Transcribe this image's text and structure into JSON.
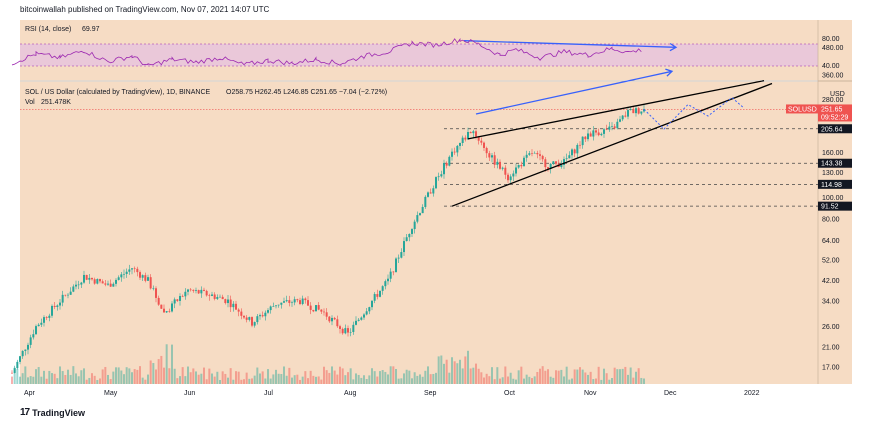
{
  "header": {
    "text": "bitcoinwallah published on TradingView.com, Nov 07, 2021 14:07 UTC"
  },
  "footer": {
    "brand": "TradingView",
    "logo": "tv-logo-icon"
  },
  "rsi_legend": {
    "label": "RSI (14, close)",
    "value": "69.97"
  },
  "price_legend": {
    "title": "SOL / US Dollar (calculated by TradingView), 1D, BINANCE",
    "ohlc": "O258.75  H262.45  L246.85  C251.65  −7.04 (−2.72%)",
    "vol_label": "Vol",
    "vol_value": "251.478K"
  },
  "colors": {
    "background": "#f6dcc4",
    "up": "#26a69a",
    "down": "#ef5350",
    "rsi_line": "#9c27b0",
    "rsi_band": "#e7c4dd",
    "blue_arrow": "#3861fb",
    "pattern": "#000000"
  },
  "chart_data": {
    "type": "candlestick",
    "title": "SOL / US Dollar (calculated by TradingView), 1D, BINANCE",
    "y_scale": "log",
    "x_months": [
      "Apr",
      "May",
      "Jun",
      "Jul",
      "Aug",
      "Sep",
      "Oct",
      "Nov",
      "Dec",
      "2022"
    ],
    "price_ticks": [
      "480.00",
      "360.00",
      "280.00",
      "160.00",
      "130.00",
      "100.00",
      "80.00",
      "64.00",
      "52.00",
      "42.00",
      "34.00",
      "26.00",
      "21.00",
      "17.00"
    ],
    "price_unit": "USD",
    "rsi_ticks": [
      "80.00",
      "40.00"
    ],
    "last_price": {
      "label": "SOLUSD",
      "value": "251.65",
      "countdown": "09:52:29"
    },
    "levels": [
      {
        "value": 205.64,
        "label": "205.64"
      },
      {
        "value": 143.38,
        "label": "143.38"
      },
      {
        "value": 114.98,
        "label": "114.98"
      },
      {
        "value": 91.52,
        "label": "91.52"
      }
    ],
    "price_path": [
      {
        "month": 3.3,
        "price": 16
      },
      {
        "month": 3.6,
        "price": 26
      },
      {
        "month": 3.9,
        "price": 34
      },
      {
        "month": 4.2,
        "price": 44
      },
      {
        "month": 4.5,
        "price": 40
      },
      {
        "month": 4.8,
        "price": 48
      },
      {
        "month": 5.0,
        "price": 42
      },
      {
        "month": 5.2,
        "price": 30
      },
      {
        "month": 5.5,
        "price": 38
      },
      {
        "month": 5.8,
        "price": 36
      },
      {
        "month": 6.0,
        "price": 34
      },
      {
        "month": 6.3,
        "price": 27
      },
      {
        "month": 6.6,
        "price": 33
      },
      {
        "month": 6.9,
        "price": 34
      },
      {
        "month": 7.2,
        "price": 30
      },
      {
        "month": 7.5,
        "price": 24
      },
      {
        "month": 7.8,
        "price": 34
      },
      {
        "month": 8.0,
        "price": 42
      },
      {
        "month": 8.3,
        "price": 75
      },
      {
        "month": 8.6,
        "price": 120
      },
      {
        "month": 8.8,
        "price": 160
      },
      {
        "month": 9.05,
        "price": 205
      },
      {
        "month": 9.3,
        "price": 150
      },
      {
        "month": 9.5,
        "price": 125
      },
      {
        "month": 9.8,
        "price": 160
      },
      {
        "month": 10.0,
        "price": 140
      },
      {
        "month": 10.2,
        "price": 145
      },
      {
        "month": 10.5,
        "price": 195
      },
      {
        "month": 10.8,
        "price": 205
      },
      {
        "month": 11.0,
        "price": 245
      },
      {
        "month": 11.2,
        "price": 252
      }
    ],
    "projection_path": [
      {
        "month": 11.2,
        "price": 252
      },
      {
        "month": 11.45,
        "price": 205
      },
      {
        "month": 11.75,
        "price": 265
      },
      {
        "month": 12.0,
        "price": 235
      },
      {
        "month": 12.3,
        "price": 285
      },
      {
        "month": 12.45,
        "price": 255
      }
    ],
    "wedge_upper": [
      {
        "month": 9.0,
        "price": 185
      },
      {
        "month": 12.7,
        "price": 340
      }
    ],
    "wedge_lower": [
      {
        "month": 8.8,
        "price": 91.5
      },
      {
        "month": 12.8,
        "price": 330
      }
    ],
    "rsi_path": [
      {
        "month": 3.3,
        "price": 45
      },
      {
        "month": 3.6,
        "price": 62
      },
      {
        "month": 3.9,
        "price": 55
      },
      {
        "month": 4.2,
        "price": 68
      },
      {
        "month": 4.5,
        "price": 48
      },
      {
        "month": 4.8,
        "price": 58
      },
      {
        "month": 5.0,
        "price": 40
      },
      {
        "month": 5.3,
        "price": 52
      },
      {
        "month": 5.6,
        "price": 47
      },
      {
        "month": 5.9,
        "price": 55
      },
      {
        "month": 6.2,
        "price": 42
      },
      {
        "month": 6.5,
        "price": 50
      },
      {
        "month": 6.8,
        "price": 45
      },
      {
        "month": 7.1,
        "price": 52
      },
      {
        "month": 7.4,
        "price": 44
      },
      {
        "month": 7.7,
        "price": 58
      },
      {
        "month": 8.0,
        "price": 66
      },
      {
        "month": 8.3,
        "price": 82
      },
      {
        "month": 8.6,
        "price": 78
      },
      {
        "month": 8.9,
        "price": 88
      },
      {
        "month": 9.1,
        "price": 82
      },
      {
        "month": 9.4,
        "price": 60
      },
      {
        "month": 9.6,
        "price": 70
      },
      {
        "month": 9.9,
        "price": 55
      },
      {
        "month": 10.2,
        "price": 66
      },
      {
        "month": 10.5,
        "price": 60
      },
      {
        "month": 10.8,
        "price": 72
      },
      {
        "month": 11.0,
        "price": 65
      },
      {
        "month": 11.2,
        "price": 70
      }
    ],
    "rsi_divergence": [
      {
        "month": 8.95,
        "price": 86
      },
      {
        "month": 11.6,
        "price": 74
      }
    ],
    "price_divergence": [
      {
        "month": 9.1,
        "price": 240
      },
      {
        "month": 11.55,
        "price": 375
      }
    ]
  }
}
